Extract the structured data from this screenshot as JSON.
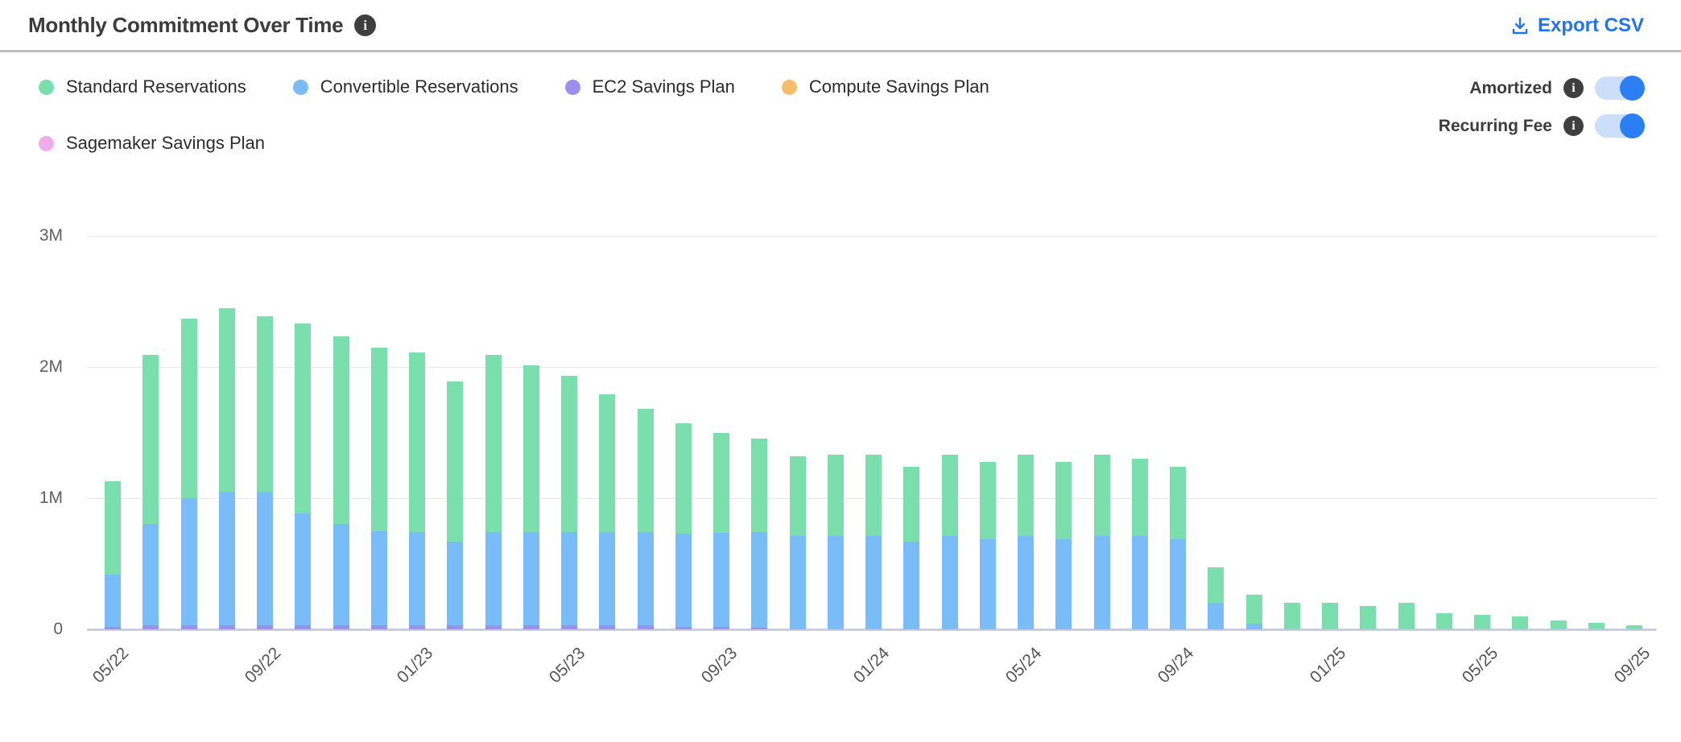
{
  "header": {
    "title": "Monthly Commitment Over Time",
    "export_label": "Export CSV"
  },
  "legend": [
    {
      "label": "Standard Reservations",
      "color": "#7bdfad"
    },
    {
      "label": "Convertible Reservations",
      "color": "#7abcf8"
    },
    {
      "label": "EC2 Savings Plan",
      "color": "#9c8fef"
    },
    {
      "label": "Compute Savings Plan",
      "color": "#f6be6a"
    },
    {
      "label": "Sagemaker Savings Plan",
      "color": "#f0abeb"
    }
  ],
  "toggles": [
    {
      "label": "Amortized",
      "on": true
    },
    {
      "label": "Recurring Fee",
      "on": true
    }
  ],
  "colors": {
    "accent_blue": "#2273f2",
    "toggle_knob": "#2b7ff2",
    "toggle_track": "#cbdffb",
    "gridline": "#e9e9e9",
    "axis_line": "#c6cde4"
  },
  "chart_data": {
    "type": "bar",
    "stacked": true,
    "title": "Monthly Commitment Over Time",
    "unit": "millions USD",
    "ylim": [
      0,
      3000000
    ],
    "y_ticks": [
      "0",
      "1M",
      "2M",
      "3M"
    ],
    "grid": true,
    "legend_position": "top-left",
    "x_tick_every": 4,
    "x_tick_labels": [
      "05/22",
      "09/22",
      "01/23",
      "05/23",
      "09/23",
      "01/24",
      "05/24",
      "09/24",
      "01/25",
      "05/25",
      "09/25"
    ],
    "categories": [
      "05/22",
      "06/22",
      "07/22",
      "08/22",
      "09/22",
      "10/22",
      "11/22",
      "12/22",
      "01/23",
      "02/23",
      "03/23",
      "04/23",
      "05/23",
      "06/23",
      "07/23",
      "08/23",
      "09/23",
      "10/23",
      "11/23",
      "12/23",
      "01/24",
      "02/24",
      "03/24",
      "04/24",
      "05/24",
      "06/24",
      "07/24",
      "08/24",
      "09/24",
      "10/24",
      "11/24",
      "12/24",
      "01/25",
      "02/25",
      "03/25",
      "04/25",
      "05/25",
      "06/25",
      "07/25",
      "08/25",
      "09/25"
    ],
    "series": [
      {
        "name": "Standard Reservations",
        "color": "#7bdfad",
        "values_millions": [
          0.71,
          1.29,
          1.37,
          1.4,
          1.34,
          1.45,
          1.43,
          1.4,
          1.37,
          1.22,
          1.35,
          1.27,
          1.19,
          1.05,
          0.94,
          0.84,
          0.76,
          0.71,
          0.61,
          0.62,
          0.62,
          0.57,
          0.62,
          0.59,
          0.62,
          0.59,
          0.62,
          0.59,
          0.55,
          0.27,
          0.22,
          0.2,
          0.2,
          0.18,
          0.2,
          0.12,
          0.11,
          0.1,
          0.07,
          0.05,
          0.03
        ]
      },
      {
        "name": "Convertible Reservations",
        "color": "#7abcf8",
        "values_millions": [
          0.4,
          0.77,
          0.97,
          1.02,
          1.02,
          0.85,
          0.77,
          0.72,
          0.71,
          0.64,
          0.71,
          0.71,
          0.71,
          0.71,
          0.71,
          0.71,
          0.72,
          0.73,
          0.71,
          0.71,
          0.71,
          0.67,
          0.71,
          0.69,
          0.71,
          0.69,
          0.71,
          0.71,
          0.69,
          0.2,
          0.04,
          0,
          0,
          0,
          0,
          0,
          0,
          0,
          0,
          0,
          0
        ]
      },
      {
        "name": "EC2 Savings Plan",
        "color": "#9c8fef",
        "values_millions": [
          0.02,
          0.03,
          0.03,
          0.03,
          0.03,
          0.03,
          0.03,
          0.03,
          0.03,
          0.03,
          0.03,
          0.03,
          0.03,
          0.03,
          0.03,
          0.02,
          0.02,
          0.01,
          0,
          0,
          0,
          0,
          0,
          0,
          0,
          0,
          0,
          0,
          0,
          0,
          0,
          0,
          0,
          0,
          0,
          0,
          0,
          0,
          0,
          0,
          0
        ]
      },
      {
        "name": "Compute Savings Plan",
        "color": "#f6be6a",
        "values_millions": [
          0,
          0,
          0,
          0,
          0,
          0,
          0,
          0,
          0,
          0,
          0,
          0,
          0,
          0,
          0,
          0,
          0,
          0,
          0,
          0,
          0,
          0,
          0,
          0,
          0,
          0,
          0,
          0,
          0,
          0,
          0,
          0,
          0,
          0,
          0,
          0,
          0,
          0,
          0,
          0,
          0
        ]
      },
      {
        "name": "Sagemaker Savings Plan",
        "color": "#f0abeb",
        "values_millions": [
          0,
          0,
          0,
          0,
          0,
          0,
          0,
          0,
          0,
          0,
          0,
          0,
          0,
          0,
          0,
          0,
          0,
          0,
          0,
          0,
          0,
          0,
          0,
          0,
          0,
          0,
          0,
          0,
          0,
          0,
          0,
          0,
          0,
          0,
          0,
          0,
          0,
          0,
          0,
          0,
          0
        ]
      }
    ]
  }
}
